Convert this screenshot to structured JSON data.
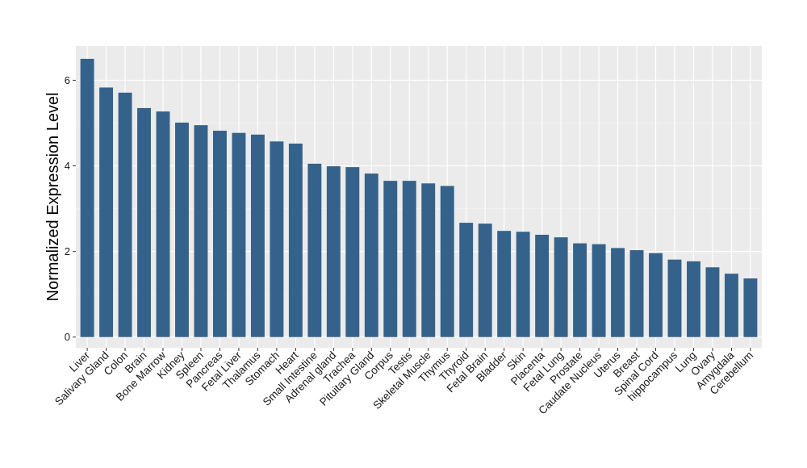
{
  "chart_data": {
    "type": "bar",
    "ylabel": "Normalized Expression Level",
    "xlabel": "",
    "ylim": [
      -0.25,
      6.8
    ],
    "yticks": [
      0,
      2,
      4,
      6
    ],
    "grid": true,
    "bar_color": "#34628a",
    "panel_color": "#ebebeb",
    "categories": [
      "Liver",
      "Salivary Gland",
      "Colon",
      "Brain",
      "Bone Marrow",
      "Kidney",
      "Spleen",
      "Pancreas",
      "Fetal Liver",
      "Thalamus",
      "Stomach",
      "Heart",
      "Small Intestine",
      "Adrenal gland",
      "Trachea",
      "Pituitary Gland",
      "Corpus",
      "Testis",
      "Skeletal Muscle",
      "Thymus",
      "Thyroid",
      "Fetal Brain",
      "Bladder",
      "Skin",
      "Placenta",
      "Fetal Lung",
      "Prostate",
      "Caudate Nucleus",
      "Uterus",
      "Breast",
      "Spinal Cord",
      "hippocampus",
      "Lung",
      "Ovary",
      "Amygdala",
      "Cerebellum"
    ],
    "values": [
      6.5,
      5.83,
      5.71,
      5.35,
      5.27,
      5.01,
      4.95,
      4.82,
      4.77,
      4.73,
      4.57,
      4.52,
      4.05,
      3.99,
      3.97,
      3.82,
      3.65,
      3.65,
      3.59,
      3.53,
      2.67,
      2.65,
      2.48,
      2.46,
      2.39,
      2.33,
      2.19,
      2.17,
      2.08,
      2.03,
      1.96,
      1.81,
      1.77,
      1.63,
      1.48,
      1.37
    ]
  }
}
